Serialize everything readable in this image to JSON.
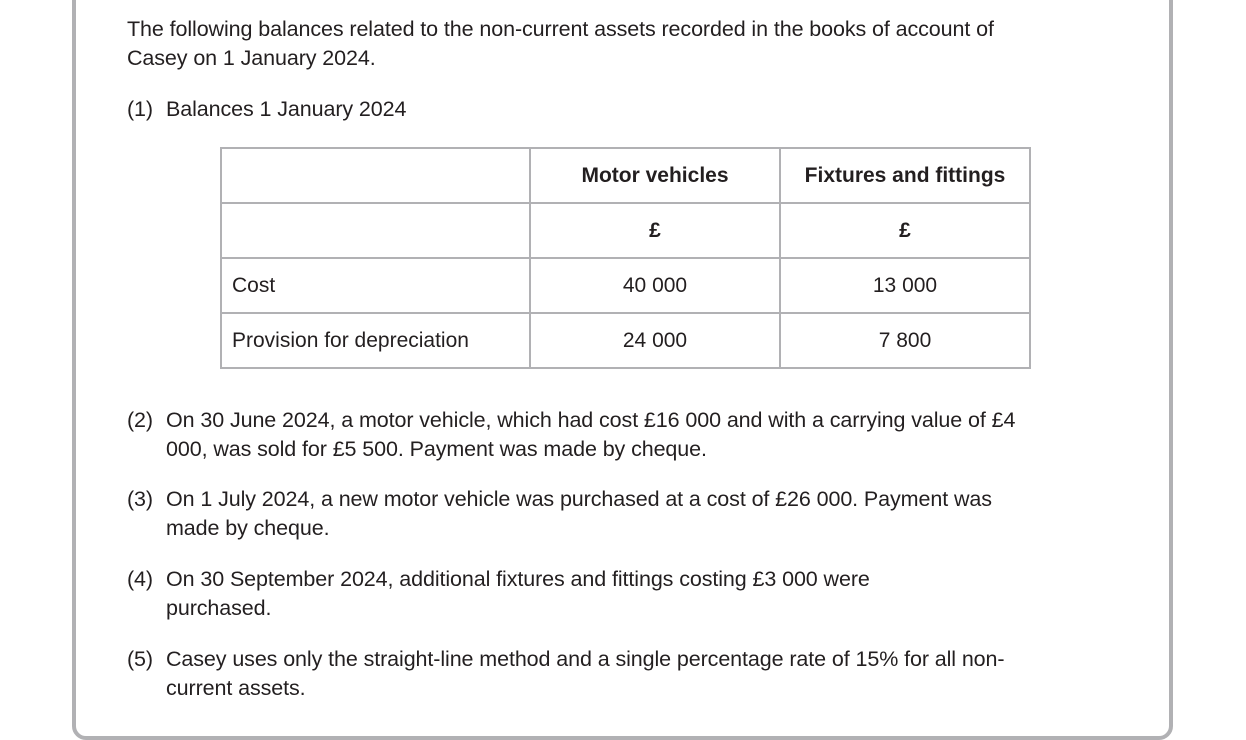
{
  "intro": "The following balances related to the non-current assets recorded in the books of account of Casey on 1 January 2024.",
  "items": [
    {
      "num": "(1)",
      "text": "Balances 1 January 2024"
    },
    {
      "num": "(2)",
      "text": "On 30 June 2024, a motor vehicle, which had cost £16 000 and with a carrying value of £4 000, was sold for £5 500. Payment was made by cheque."
    },
    {
      "num": "(3)",
      "text": "On 1 July 2024, a new motor vehicle was purchased at a cost of £26 000. Payment was made by cheque."
    },
    {
      "num": "(4)",
      "text": "On 30 September 2024, additional fixtures and fittings costing £3 000 were purchased."
    },
    {
      "num": "(5)",
      "text": "Casey uses only the straight-line method and a single percentage rate of 15% for all non-current assets."
    }
  ],
  "table": {
    "headers": [
      "",
      "Motor vehicles",
      "Fixtures and fittings"
    ],
    "units": [
      "",
      "£",
      "£"
    ],
    "rows": [
      [
        "Cost",
        "40 000",
        "13 000"
      ],
      [
        "Provision for depreciation",
        "24 000",
        "7 800"
      ]
    ]
  }
}
